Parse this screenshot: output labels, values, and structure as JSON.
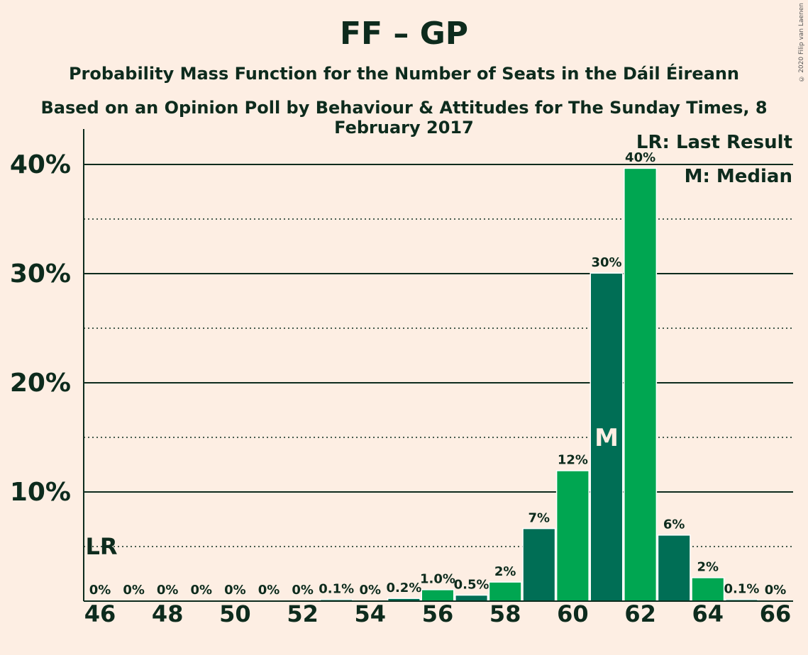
{
  "header": {
    "title": "FF – GP",
    "subtitle": "Probability Mass Function for the Number of Seats in the Dáil Éireann",
    "subtitle2": "Based on an Opinion Poll by Behaviour & Attitudes for The Sunday Times, 8 February 2017",
    "copyright": "© 2020 Filip van Laenen"
  },
  "legend": {
    "lr": "LR: Last Result",
    "m": "M: Median"
  },
  "colors": {
    "background": "#fdeee3",
    "bar_dark": "#006e55",
    "bar_light": "#00a651",
    "text": "#0d2b1d"
  },
  "chart_data": {
    "type": "bar",
    "x": [
      46,
      47,
      48,
      49,
      50,
      51,
      52,
      53,
      54,
      55,
      56,
      57,
      58,
      59,
      60,
      61,
      62,
      63,
      64,
      65,
      66
    ],
    "values": [
      0,
      0,
      0,
      0,
      0,
      0,
      0,
      0.1,
      0,
      0.2,
      1.0,
      0.5,
      1.7,
      6.6,
      11.9,
      30.0,
      39.6,
      6.0,
      2.1,
      0.1,
      0
    ],
    "labels": [
      "0%",
      "0%",
      "0%",
      "0%",
      "0%",
      "0%",
      "0%",
      "0.1%",
      "0%",
      "0.2%",
      "1.0%",
      "0.5%",
      "2%",
      "7%",
      "12%",
      "30%",
      "40%",
      "6%",
      "2%",
      "0.1%",
      "0%"
    ],
    "xticks": [
      "46",
      "48",
      "50",
      "52",
      "54",
      "56",
      "58",
      "60",
      "62",
      "64",
      "66"
    ],
    "yticks": [
      "10%",
      "20%",
      "30%",
      "40%"
    ],
    "ylim": [
      0,
      43
    ],
    "last_result": 46,
    "last_result_label": "LR",
    "median": 61,
    "median_label": "M",
    "grid": true
  }
}
